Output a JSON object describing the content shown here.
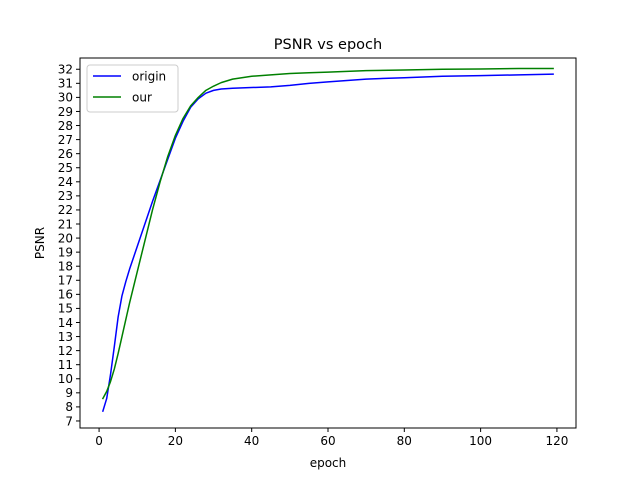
{
  "chart_data": {
    "type": "line",
    "title": "PSNR vs epoch",
    "xlabel": "epoch",
    "ylabel": "PSNR",
    "xlim": [
      -5,
      125
    ],
    "ylim": [
      6.5,
      32.8
    ],
    "xticks": [
      0,
      20,
      40,
      60,
      80,
      100,
      120
    ],
    "xtick_labels": [
      "0",
      "20",
      "40",
      "60",
      "80",
      "100",
      "120"
    ],
    "yticks": [
      7,
      8,
      9,
      10,
      11,
      12,
      13,
      14,
      15,
      16,
      17,
      18,
      19,
      20,
      21,
      22,
      23,
      24,
      25,
      26,
      27,
      28,
      29,
      30,
      31,
      32
    ],
    "ytick_labels": [
      "7",
      "8",
      "9",
      "10",
      "11",
      "12",
      "13",
      "14",
      "15",
      "16",
      "17",
      "18",
      "19",
      "20",
      "21",
      "22",
      "23",
      "24",
      "25",
      "26",
      "27",
      "28",
      "29",
      "30",
      "31",
      "32"
    ],
    "grid": false,
    "legend_position": "top-left",
    "series": [
      {
        "name": "origin",
        "color": "#0000ff",
        "x": [
          1,
          2,
          3,
          4,
          5,
          6,
          7,
          8,
          10,
          12,
          14,
          16,
          18,
          20,
          22,
          24,
          26,
          28,
          30,
          32,
          35,
          40,
          45,
          50,
          55,
          60,
          70,
          80,
          90,
          100,
          110,
          119
        ],
        "y": [
          7.7,
          8.6,
          10.3,
          12.3,
          14.4,
          15.9,
          16.9,
          17.8,
          19.4,
          21.0,
          22.6,
          24.1,
          25.6,
          27.1,
          28.3,
          29.3,
          29.9,
          30.3,
          30.5,
          30.6,
          30.65,
          30.7,
          30.75,
          30.85,
          31.0,
          31.1,
          31.3,
          31.4,
          31.5,
          31.55,
          31.6,
          31.65
        ]
      },
      {
        "name": "our",
        "color": "#008000",
        "x": [
          1,
          2,
          3,
          4,
          5,
          6,
          7,
          8,
          10,
          12,
          14,
          16,
          18,
          20,
          22,
          24,
          26,
          28,
          30,
          32,
          35,
          40,
          45,
          50,
          55,
          60,
          70,
          80,
          90,
          100,
          110,
          119
        ],
        "y": [
          8.6,
          9.1,
          9.8,
          10.7,
          11.8,
          13.0,
          14.2,
          15.4,
          17.6,
          19.8,
          22.0,
          24.0,
          25.8,
          27.3,
          28.5,
          29.4,
          30.0,
          30.5,
          30.8,
          31.05,
          31.3,
          31.5,
          31.6,
          31.7,
          31.75,
          31.8,
          31.9,
          31.95,
          32.0,
          32.02,
          32.05,
          32.05
        ]
      }
    ]
  }
}
